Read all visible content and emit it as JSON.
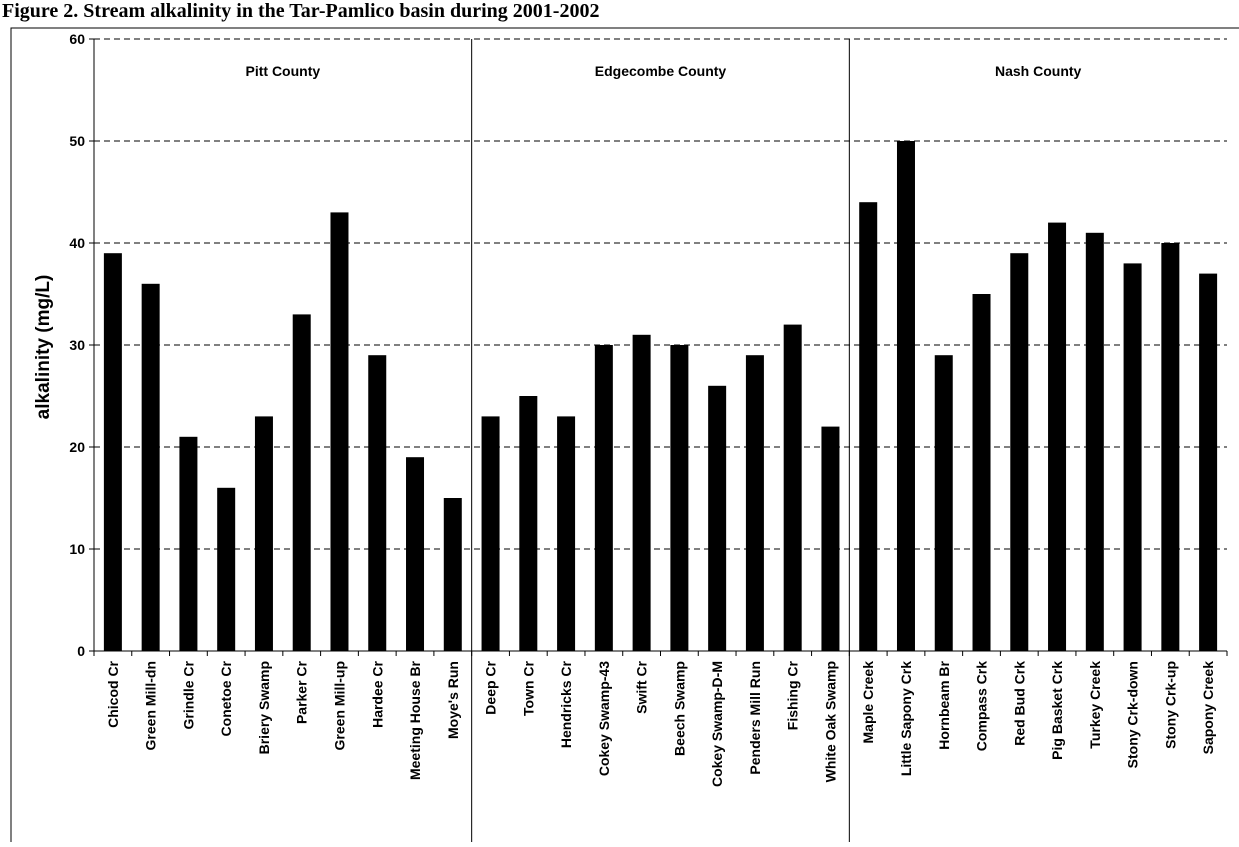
{
  "caption": "Figure 2.  Stream alkalinity in the Tar-Pamlico basin during 2001-2002",
  "chart_data": {
    "type": "bar",
    "ylabel": "alkalinity (mg/L)",
    "xlabel": "",
    "title": "",
    "ylim": [
      0,
      60
    ],
    "yticks": [
      0,
      10,
      20,
      30,
      40,
      50,
      60
    ],
    "grid": "dashed horizontal",
    "bar_color": "#000000",
    "groups": [
      {
        "name": "Pitt County",
        "start": 0,
        "end": 10
      },
      {
        "name": "Edgecombe County",
        "start": 10,
        "end": 20
      },
      {
        "name": "Nash County",
        "start": 20,
        "end": 30
      }
    ],
    "categories": [
      "Chicod Cr",
      "Green Mill-dn",
      "Grindle Cr",
      "Conetoe Cr",
      "Briery Swamp",
      "Parker Cr",
      "Green Mill-up",
      "Hardee Cr",
      "Meeting House Br",
      "Moye's Run",
      "Deep Cr",
      "Town Cr",
      "Hendricks Cr",
      "Cokey Swamp-43",
      "Swift Cr",
      "Beech Swamp",
      "Cokey Swamp-D-M",
      "Penders Mill Run",
      "Fishing Cr",
      "White Oak Swamp",
      "Maple Creek",
      "Little Sapony Crk",
      "Hornbeam Br",
      "Compass Crk",
      "Red Bud Crk",
      "Pig Basket Crk",
      "Turkey Creek",
      "Stony Crk-down",
      "Stony Crk-up",
      "Sapony Creek"
    ],
    "values": [
      39,
      36,
      21,
      16,
      23,
      33,
      43,
      29,
      19,
      15,
      23,
      25,
      23,
      30,
      31,
      30,
      26,
      29,
      32,
      22,
      44,
      50,
      29,
      35,
      39,
      42,
      41,
      38,
      40,
      37
    ]
  }
}
